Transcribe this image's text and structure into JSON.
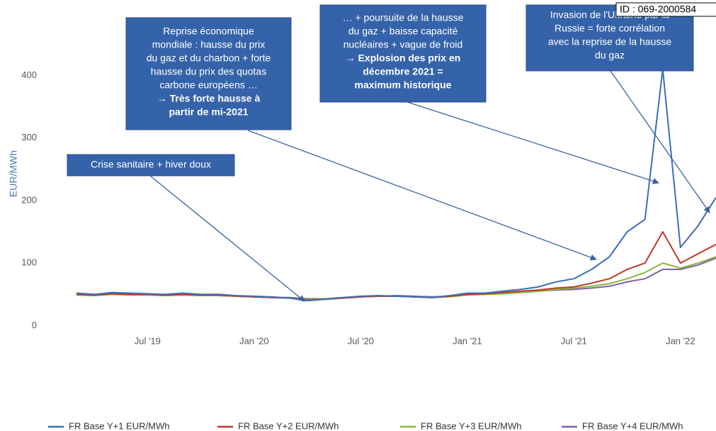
{
  "chart_data": {
    "type": "line",
    "y_axis_label": "EUR/MWh",
    "id_label": "ID : 069-2000584",
    "x": [
      "2019-03",
      "2019-04",
      "2019-05",
      "2019-06",
      "2019-07",
      "2019-08",
      "2019-09",
      "2019-10",
      "2019-11",
      "2019-12",
      "2020-01",
      "2020-02",
      "2020-03",
      "2020-04",
      "2020-05",
      "2020-06",
      "2020-07",
      "2020-08",
      "2020-09",
      "2020-10",
      "2020-11",
      "2020-12",
      "2021-01",
      "2021-02",
      "2021-03",
      "2021-04",
      "2021-05",
      "2021-06",
      "2021-07",
      "2021-08",
      "2021-09",
      "2021-10",
      "2021-11",
      "2021-12",
      "2022-01",
      "2022-02",
      "2022-03"
    ],
    "series": [
      {
        "name": "FR Base Y+1 EUR/MWh",
        "color": "#3c6eb4",
        "values": [
          52,
          50,
          53,
          52,
          51,
          50,
          52,
          50,
          50,
          48,
          47,
          46,
          44,
          40,
          42,
          45,
          47,
          48,
          47,
          46,
          45,
          48,
          52,
          52,
          55,
          58,
          62,
          70,
          75,
          90,
          110,
          150,
          170,
          410,
          125,
          160,
          205
        ]
      },
      {
        "name": "FR Base Y+2 EUR/MWh",
        "color": "#c0392b",
        "values": [
          50,
          49,
          51,
          50,
          50,
          49,
          50,
          49,
          49,
          47,
          46,
          45,
          44,
          41,
          42,
          44,
          46,
          47,
          47,
          46,
          45,
          47,
          50,
          51,
          53,
          55,
          57,
          60,
          62,
          68,
          75,
          90,
          100,
          150,
          100,
          115,
          130
        ]
      },
      {
        "name": "FR Base Y+3 EUR/MWh",
        "color": "#8db43a",
        "values": [
          49,
          48,
          50,
          49,
          49,
          48,
          49,
          48,
          48,
          47,
          46,
          45,
          44,
          42,
          43,
          44,
          46,
          47,
          47,
          46,
          45,
          46,
          49,
          50,
          51,
          53,
          55,
          58,
          60,
          63,
          67,
          75,
          85,
          100,
          92,
          100,
          110
        ]
      },
      {
        "name": "FR Base Y+4 EUR/MWh",
        "color": "#7e5fa8",
        "values": [
          49,
          48,
          50,
          49,
          49,
          48,
          49,
          48,
          48,
          47,
          46,
          45,
          45,
          43,
          43,
          45,
          46,
          47,
          48,
          47,
          46,
          47,
          49,
          50,
          51,
          53,
          55,
          57,
          58,
          60,
          63,
          70,
          75,
          90,
          90,
          97,
          108
        ]
      }
    ],
    "xlim": [
      "2019-03",
      "2022-03"
    ],
    "xticks": [
      {
        "value": "2019-07",
        "label": "Jul '19"
      },
      {
        "value": "2020-01",
        "label": "Jan '20"
      },
      {
        "value": "2020-07",
        "label": "Jul '20"
      },
      {
        "value": "2021-01",
        "label": "Jan '21"
      },
      {
        "value": "2021-07",
        "label": "Jul '21"
      },
      {
        "value": "2022-01",
        "label": "Jan '22"
      }
    ],
    "ylim": [
      -20,
      430
    ],
    "yticks": [
      0,
      100,
      200,
      300,
      400
    ],
    "annotations": [
      {
        "lines": [
          "Crise sanitaire + hiver doux"
        ],
        "bold_lines": []
      },
      {
        "lines": [
          "Reprise économique",
          "mondiale : hausse du prix",
          "du gaz et du charbon + forte",
          "hausse du prix des quotas",
          "carbone européens …"
        ],
        "bold_lines": [
          "→ Très forte hausse à",
          "partir de mi-2021"
        ]
      },
      {
        "lines": [
          "… + poursuite de la hausse",
          "du gaz + baisse capacité",
          "nucléaires + vague de froid"
        ],
        "bold_lines": [
          "→ Explosion des prix en",
          "décembre 2021 =",
          "maximum historique"
        ]
      },
      {
        "lines": [
          "Invasion de l'Ukraine par la",
          "Russie = forte corrélation",
          "avec la reprise de la hausse",
          "du gaz"
        ],
        "bold_lines": []
      }
    ]
  }
}
